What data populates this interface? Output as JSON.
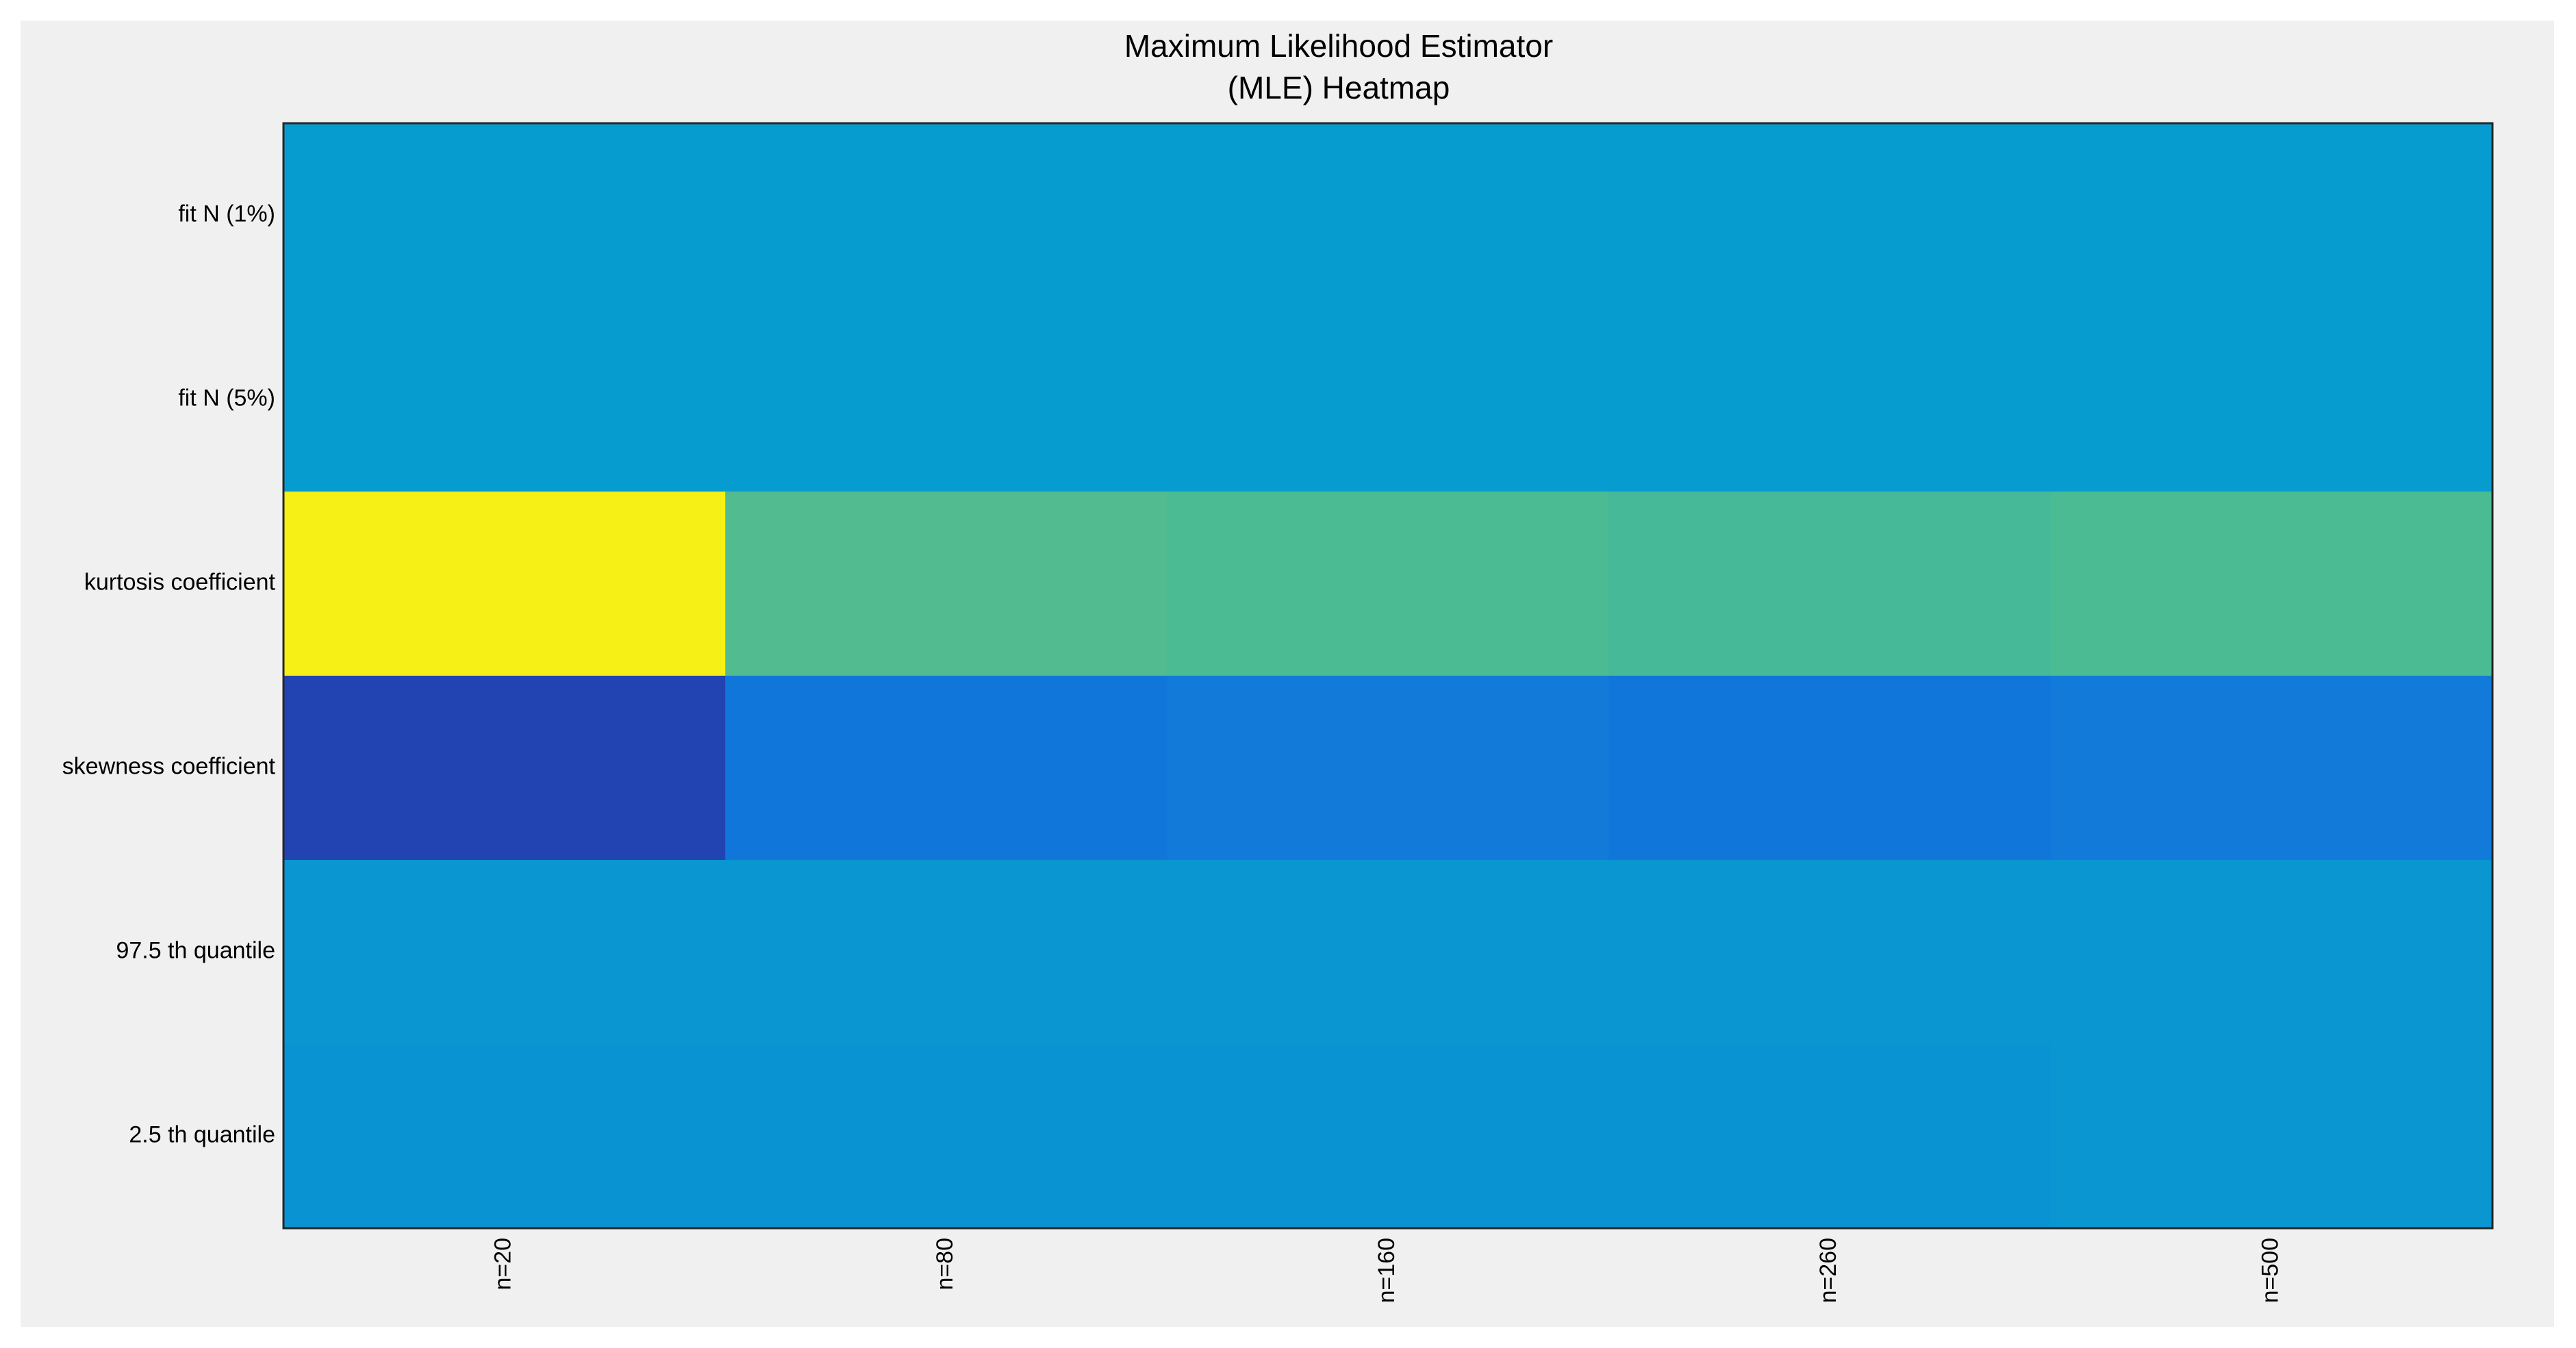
{
  "chart_data": {
    "type": "heatmap",
    "title": [
      "Maximum Likelihood Estimator",
      "(MLE) Heatmap"
    ],
    "columns": [
      "n=20",
      "n=80",
      "n=160",
      "n=260",
      "n=500"
    ],
    "rows": [
      "fit N (1%)",
      "fit N (5%)",
      "kurtosis coefficient",
      "skewness coefficient",
      "97.5 th quantile",
      "2.5 th quantile"
    ],
    "colormap": "parula",
    "color_range": [
      0,
      1
    ],
    "values": [
      [
        0.3,
        0.3,
        0.3,
        0.3,
        0.3
      ],
      [
        0.3,
        0.3,
        0.3,
        0.3,
        0.3
      ],
      [
        0.95,
        0.49,
        0.48,
        0.47,
        0.48
      ],
      [
        0.05,
        0.18,
        0.19,
        0.18,
        0.19
      ],
      [
        0.28,
        0.28,
        0.28,
        0.28,
        0.28
      ],
      [
        0.27,
        0.27,
        0.27,
        0.27,
        0.28
      ]
    ],
    "grid": false,
    "colorbar": false,
    "colors": {
      "figure_background": "#f0f0f0",
      "axes_border": "#262626"
    }
  }
}
